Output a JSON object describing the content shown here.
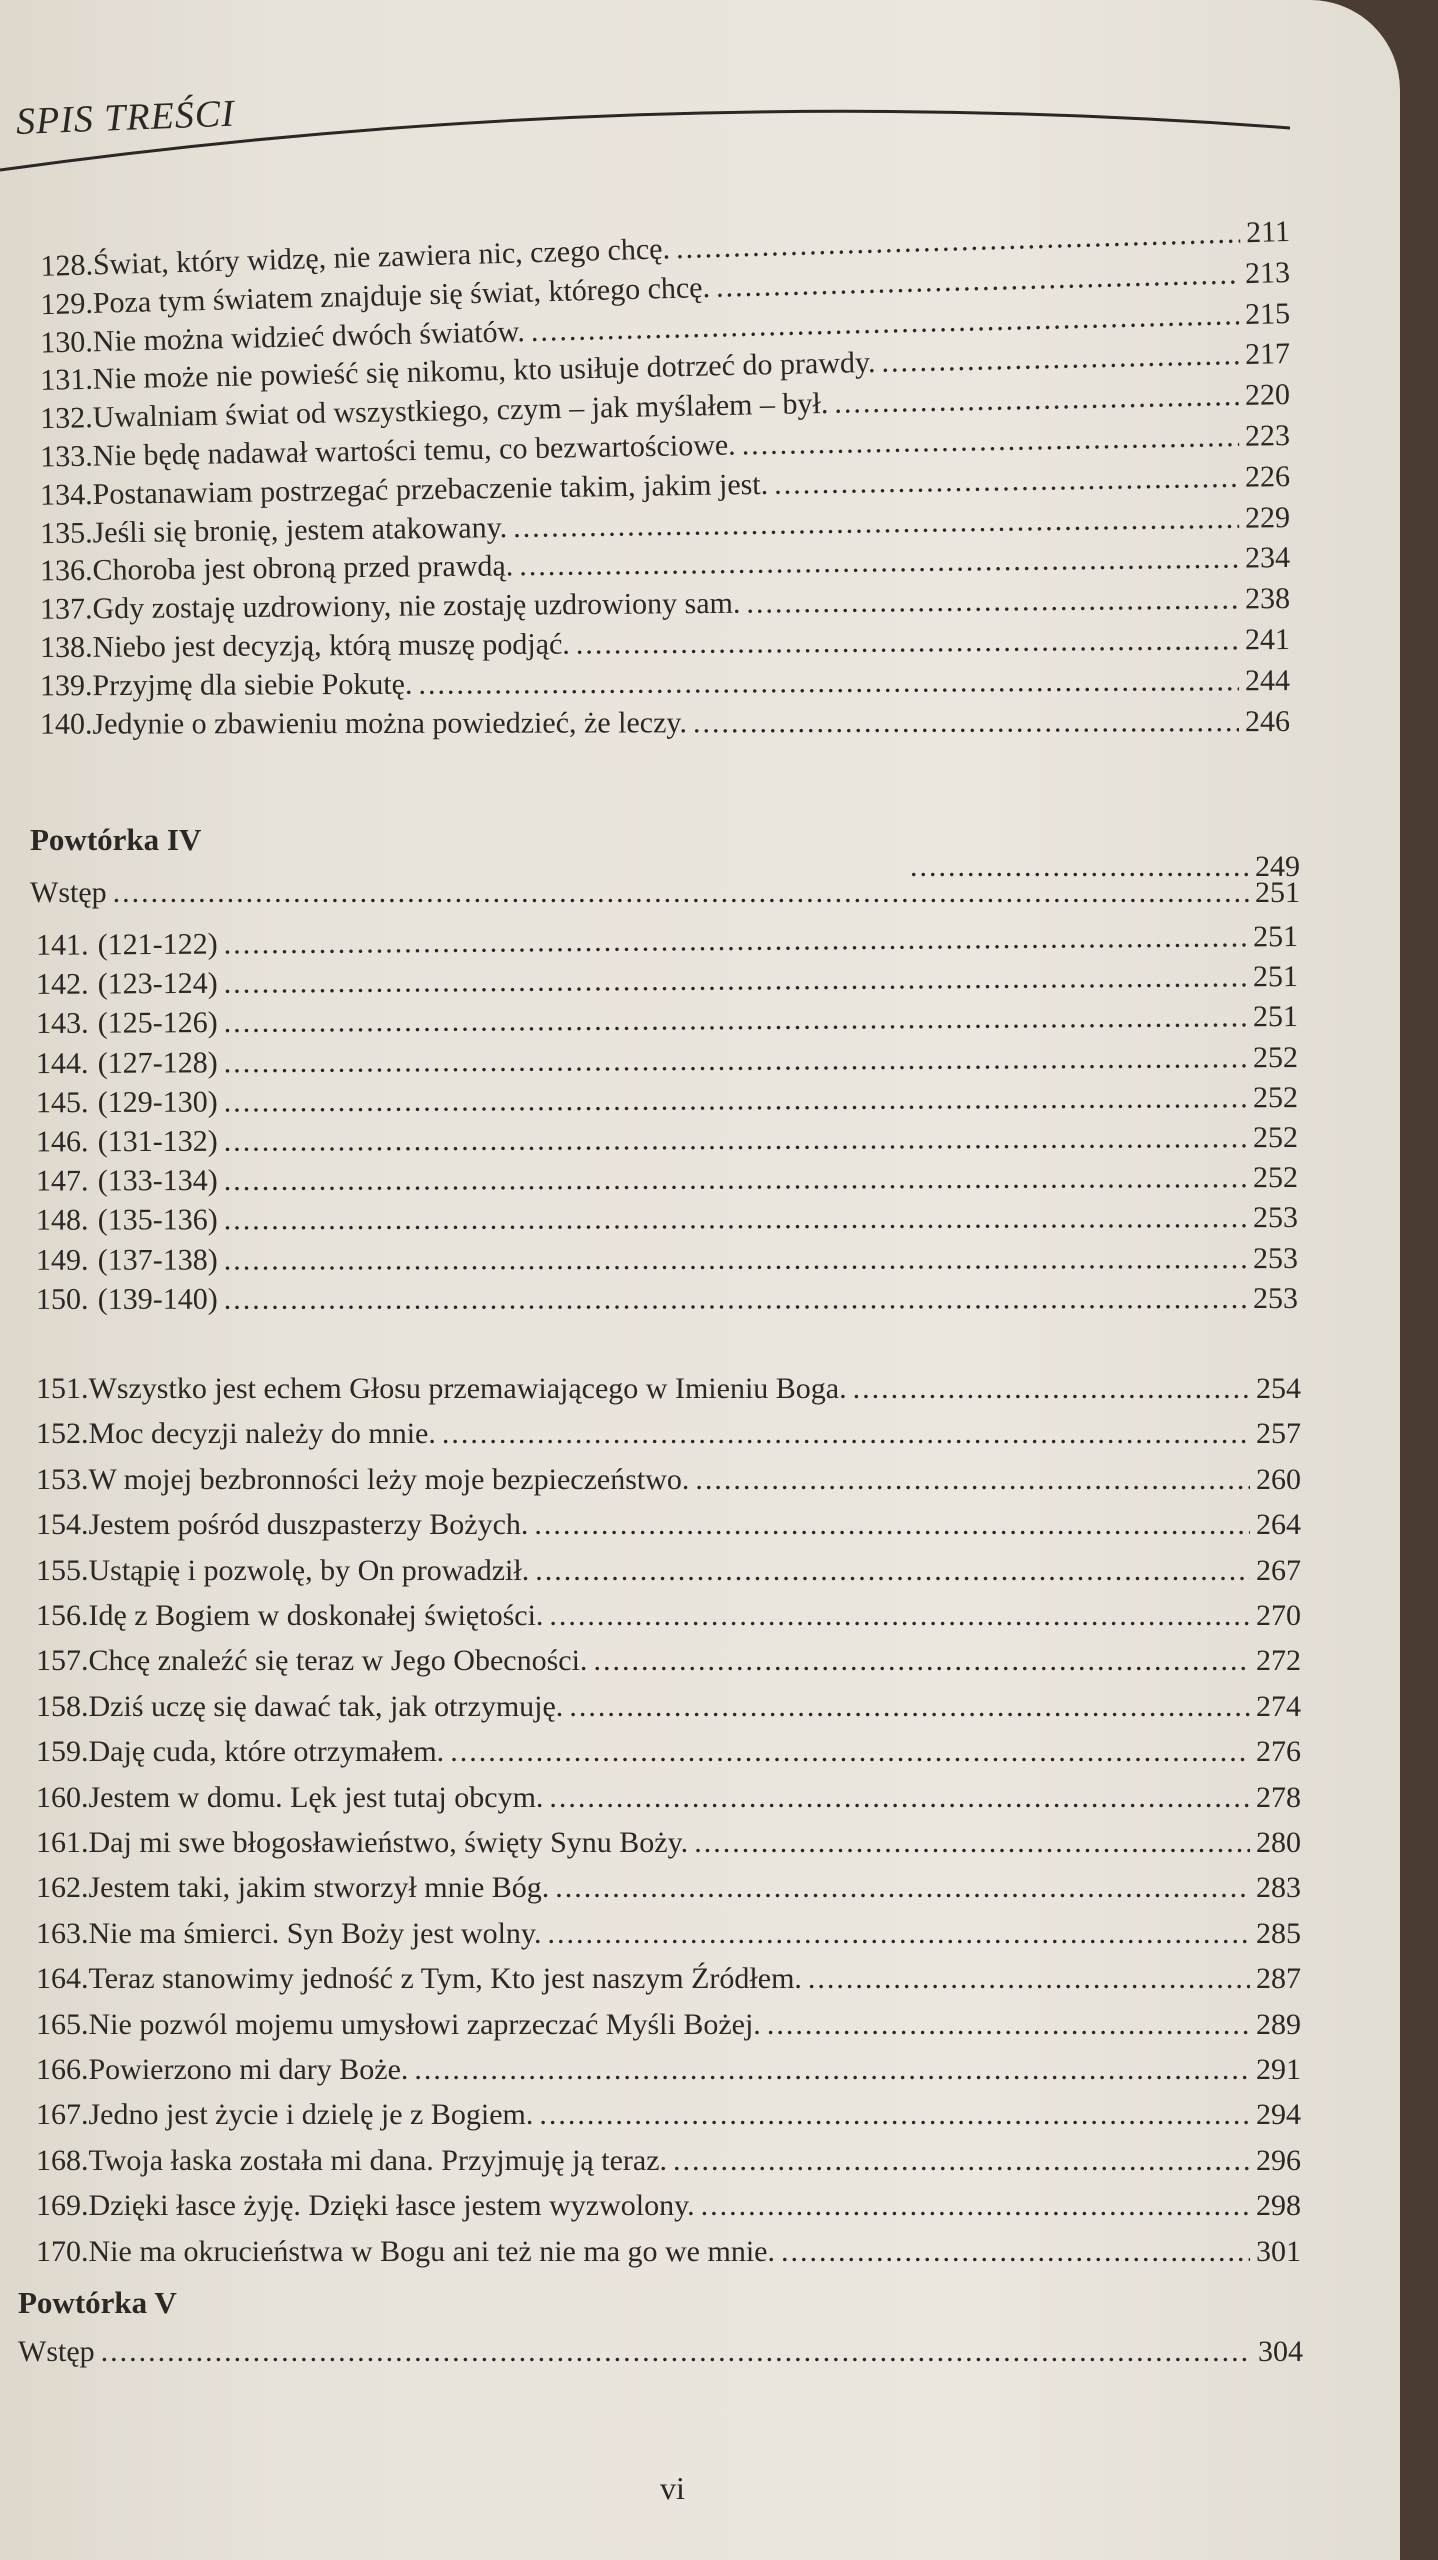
{
  "header": {
    "title": "SPIS TREŚCI"
  },
  "block1": [
    {
      "n": "128.",
      "t": "Świat, który widzę, nie zawiera nic, czego chcę.",
      "p": "211"
    },
    {
      "n": "129.",
      "t": "Poza tym światem znajduje się świat, którego chcę.",
      "p": "213"
    },
    {
      "n": "130.",
      "t": "Nie można widzieć dwóch światów.",
      "p": "215"
    },
    {
      "n": "131.",
      "t": "Nie może nie powieść się nikomu, kto usiłuje dotrzeć do prawdy.",
      "p": "217"
    },
    {
      "n": "132.",
      "t": "Uwalniam świat od wszystkiego, czym – jak myślałem – był.",
      "p": "220"
    },
    {
      "n": "133.",
      "t": "Nie będę nadawał wartości temu, co bezwartościowe.",
      "p": "223"
    },
    {
      "n": "134.",
      "t": "Postanawiam postrzegać przebaczenie takim, jakim jest.",
      "p": "226"
    },
    {
      "n": "135.",
      "t": "Jeśli się bronię, jestem atakowany.",
      "p": "229"
    },
    {
      "n": "136.",
      "t": "Choroba jest obroną przed prawdą.",
      "p": "234"
    },
    {
      "n": "137.",
      "t": "Gdy zostaję uzdrowiony, nie zostaję uzdrowiony sam.",
      "p": "238"
    },
    {
      "n": "138.",
      "t": "Niebo jest decyzją, którą muszę podjąć.",
      "p": "241"
    },
    {
      "n": "139.",
      "t": "Przyjmę dla siebie Pokutę.",
      "p": "244"
    },
    {
      "n": "140.",
      "t": "Jedynie o zbawieniu można powiedzieć, że leczy.",
      "p": "246"
    }
  ],
  "review4": {
    "heading": "Powtórka IV",
    "heading_page": "249",
    "intro": "Wstęp",
    "intro_page": "251"
  },
  "block2": [
    {
      "n": "141.",
      "t": "(121-122)",
      "p": "251"
    },
    {
      "n": "142.",
      "t": "(123-124)",
      "p": "251"
    },
    {
      "n": "143.",
      "t": "(125-126)",
      "p": "251"
    },
    {
      "n": "144.",
      "t": "(127-128)",
      "p": "252"
    },
    {
      "n": "145.",
      "t": "(129-130)",
      "p": "252"
    },
    {
      "n": "146.",
      "t": "(131-132)",
      "p": "252"
    },
    {
      "n": "147.",
      "t": "(133-134)",
      "p": "252"
    },
    {
      "n": "148.",
      "t": "(135-136)",
      "p": "253"
    },
    {
      "n": "149.",
      "t": "(137-138)",
      "p": "253"
    },
    {
      "n": "150.",
      "t": "(139-140)",
      "p": "253"
    }
  ],
  "block3": [
    {
      "n": "151.",
      "t": "Wszystko jest echem Głosu przemawiającego w Imieniu Boga.",
      "p": "254"
    },
    {
      "n": "152.",
      "t": "Moc decyzji należy do mnie.",
      "p": "257"
    },
    {
      "n": "153.",
      "t": "W mojej bezbronności leży moje bezpieczeństwo.",
      "p": "260"
    },
    {
      "n": "154.",
      "t": "Jestem pośród duszpasterzy Bożych.",
      "p": "264"
    },
    {
      "n": "155.",
      "t": "Ustąpię i pozwolę, by On prowadził.",
      "p": "267"
    },
    {
      "n": "156.",
      "t": "Idę z Bogiem w doskonałej świętości.",
      "p": "270"
    },
    {
      "n": "157.",
      "t": "Chcę znaleźć się teraz w Jego Obecności.",
      "p": "272"
    },
    {
      "n": "158.",
      "t": "Dziś uczę się dawać tak, jak otrzymuję.",
      "p": "274"
    },
    {
      "n": "159.",
      "t": "Daję cuda, które otrzymałem.",
      "p": "276"
    },
    {
      "n": "160.",
      "t": "Jestem w domu. Lęk jest tutaj obcym.",
      "p": "278"
    },
    {
      "n": "161.",
      "t": "Daj mi swe błogosławieństwo, święty Synu Boży.",
      "p": "280"
    },
    {
      "n": "162.",
      "t": "Jestem taki, jakim stworzył mnie Bóg.",
      "p": "283"
    },
    {
      "n": "163.",
      "t": "Nie ma śmierci. Syn Boży jest wolny.",
      "p": "285"
    },
    {
      "n": "164.",
      "t": "Teraz stanowimy jedność z Tym, Kto jest naszym Źródłem.",
      "p": "287"
    },
    {
      "n": "165.",
      "t": "Nie pozwól mojemu umysłowi zaprzeczać Myśli Bożej.",
      "p": "289"
    },
    {
      "n": "166.",
      "t": "Powierzono mi dary Boże.",
      "p": "291"
    },
    {
      "n": "167.",
      "t": "Jedno jest życie i dzielę je z Bogiem.",
      "p": "294"
    },
    {
      "n": "168.",
      "t": "Twoja łaska została mi dana. Przyjmuję ją teraz.",
      "p": "296"
    },
    {
      "n": "169.",
      "t": "Dzięki łasce żyję. Dzięki łasce jestem wyzwolony.",
      "p": "298"
    },
    {
      "n": "170.",
      "t": "Nie ma okrucieństwa w Bogu ani też nie ma go we mnie.",
      "p": "301"
    }
  ],
  "review5": {
    "heading": "Powtórka V",
    "intro": "Wstęp",
    "intro_page": "304"
  },
  "footer": {
    "folio": "vi"
  }
}
